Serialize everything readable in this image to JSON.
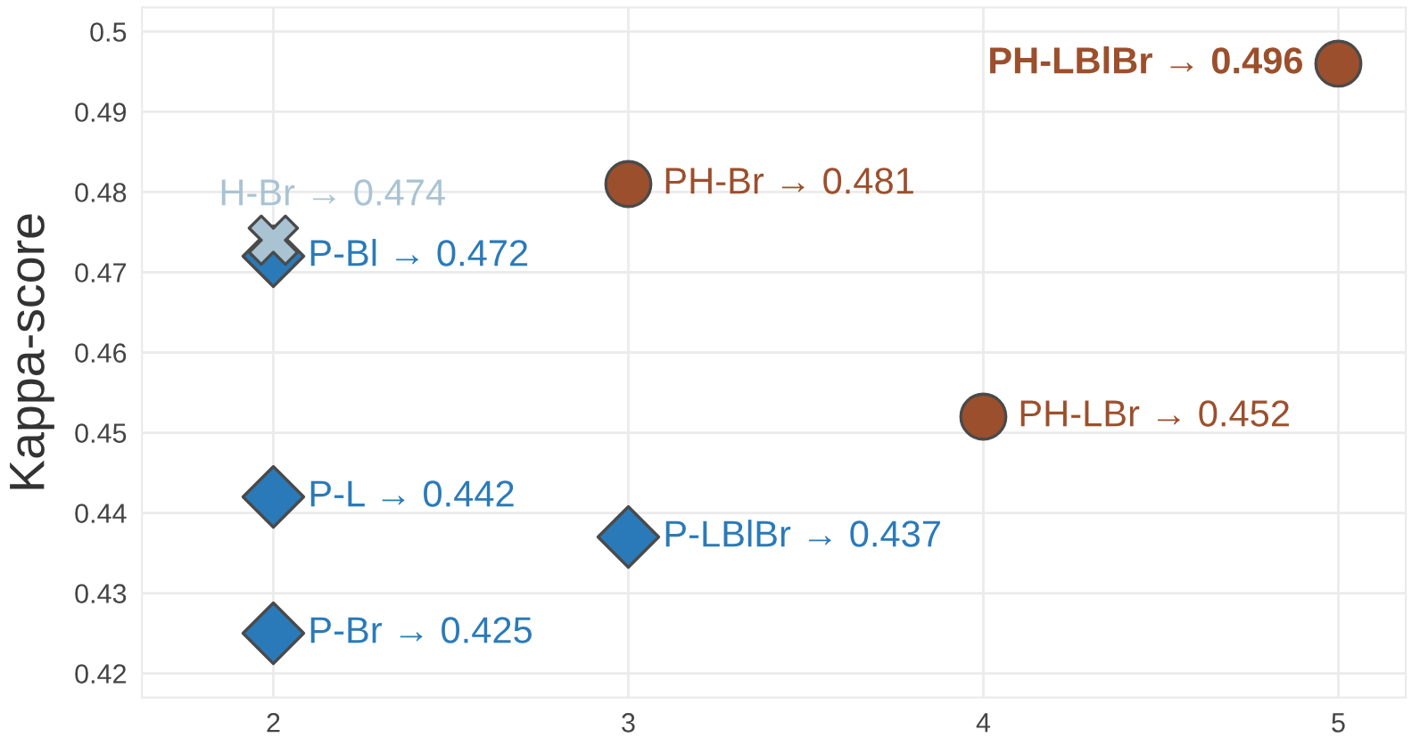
{
  "chart_data": {
    "type": "scatter",
    "ylabel": "Kappa-score",
    "xlim": [
      1.63,
      5.19
    ],
    "ylim": [
      0.417,
      0.503
    ],
    "xticks": [
      2,
      3,
      4,
      5
    ],
    "yticks": [
      0.42,
      0.43,
      0.44,
      0.45,
      0.46,
      0.47,
      0.48,
      0.49,
      {
        "value": 0.5,
        "label": "0.5"
      }
    ],
    "grid": true,
    "legend": false,
    "series": [
      {
        "color": "#2a7ab9",
        "marker": "diamond",
        "x": [
          2,
          2,
          3,
          2
        ],
        "values": [
          0.472,
          0.442,
          0.437,
          0.425
        ],
        "value_labels": [
          "P-Bl → 0.472",
          "P-L → 0.442",
          "P-LBlBr → 0.437",
          "P-Br → 0.425"
        ]
      },
      {
        "color": "#a9c3d3",
        "marker": "cross",
        "x": [
          2
        ],
        "values": [
          0.474
        ],
        "value_labels": [
          "H-Br → 0.474"
        ]
      },
      {
        "color": "#9c4f2c",
        "marker": "circle",
        "x": [
          3,
          4,
          5
        ],
        "values": [
          0.481,
          0.452,
          0.496
        ],
        "value_labels": [
          "PH-Br → 0.481",
          "PH-LBr → 0.452",
          "PH-LBlBr → 0.496"
        ]
      }
    ]
  }
}
